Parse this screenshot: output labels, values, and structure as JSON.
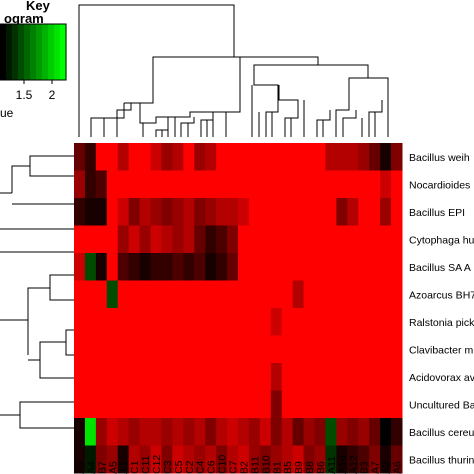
{
  "chart_data": {
    "type": "heatmap",
    "title": "",
    "color_key": {
      "title_line1": "Key",
      "title_line2": "ogram",
      "tick_labels": [
        "1.5",
        "2"
      ],
      "axis_label": "ue",
      "colors": [
        "#000000",
        "#00ff00"
      ]
    },
    "low_color": "#ff0000",
    "columns": [
      "A9",
      "A4",
      "B7",
      "A5",
      "A1",
      "C1",
      "C11",
      "C12",
      "C3",
      "C5",
      "C2",
      "C4",
      "C6",
      "C10",
      "C7",
      "B2",
      "B11",
      "B10",
      "B1",
      "B5",
      "B9",
      "B8",
      "B6",
      "A11",
      "A10",
      "A12",
      "B3",
      "A7",
      "A3",
      "A6"
    ],
    "rows": [
      "Bacillus weih",
      "Nocardioides",
      "Bacillus EPI",
      "Cytophaga hu",
      "Bacillus SA A",
      "Azoarcus BH7",
      "Ralstonia pick",
      "Clavibacter m",
      "Acidovorax av",
      "Uncultured Ba",
      "Bacillus cereu",
      "Bacillus thurin"
    ],
    "values": [
      [
        0.6,
        0.8,
        0,
        0,
        0.3,
        0,
        0,
        0.2,
        0.4,
        0.3,
        0,
        0.4,
        0.3,
        0,
        0,
        0,
        0,
        0,
        0,
        0,
        0,
        0,
        0,
        0.3,
        0.3,
        0.3,
        0.4,
        0.6,
        0.9,
        0.5
      ],
      [
        0.4,
        0.8,
        0.7,
        0,
        0,
        0,
        0,
        0,
        0,
        0,
        0,
        0,
        0,
        0,
        0,
        0,
        0,
        0,
        0,
        0,
        0,
        0,
        0,
        0,
        0,
        0,
        0,
        0,
        0.2,
        0
      ],
      [
        0.8,
        0.9,
        0.9,
        0,
        0.2,
        0.5,
        0.3,
        0.4,
        0.5,
        0.4,
        0.3,
        0.5,
        0.4,
        0.3,
        0.3,
        0.2,
        0,
        0,
        0,
        0,
        0,
        0,
        0,
        0,
        0.5,
        0.3,
        0,
        0,
        0.4,
        0
      ],
      [
        0,
        0,
        0,
        0,
        0.4,
        0.2,
        0.4,
        0.2,
        0.3,
        0.4,
        0.3,
        0.6,
        0.8,
        0.7,
        0.5,
        0,
        0,
        0,
        0,
        0,
        0,
        0,
        0,
        0,
        0,
        0,
        0,
        0,
        0,
        0
      ],
      [
        0.2,
        1.3,
        0.9,
        0,
        0.7,
        0.8,
        0.9,
        0.8,
        0.8,
        0.7,
        0.8,
        0.7,
        0.9,
        0.8,
        0.6,
        0,
        0,
        0,
        0,
        0,
        0,
        0,
        0,
        0,
        0,
        0,
        0,
        0,
        0,
        0
      ],
      [
        0,
        0,
        0,
        1.3,
        0,
        0,
        0,
        0,
        0,
        0,
        0,
        0,
        0,
        0,
        0,
        0,
        0,
        0,
        0,
        0,
        0.3,
        0,
        0,
        0,
        0,
        0,
        0,
        0,
        0,
        0
      ],
      [
        0,
        0,
        0,
        0,
        0,
        0,
        0,
        0,
        0,
        0,
        0,
        0,
        0,
        0,
        0,
        0,
        0,
        0,
        0.2,
        0,
        0,
        0,
        0,
        0,
        0,
        0,
        0,
        0,
        0,
        0
      ],
      [
        0,
        0,
        0,
        0,
        0,
        0,
        0,
        0,
        0,
        0,
        0,
        0,
        0,
        0,
        0,
        0,
        0,
        0,
        0,
        0,
        0,
        0,
        0,
        0,
        0,
        0,
        0,
        0,
        0,
        0
      ],
      [
        0,
        0,
        0,
        0,
        0,
        0,
        0,
        0,
        0,
        0,
        0,
        0,
        0,
        0,
        0,
        0,
        0,
        0,
        0.3,
        0,
        0,
        0,
        0,
        0,
        0,
        0,
        0,
        0,
        0,
        0
      ],
      [
        0,
        0,
        0,
        0,
        0,
        0,
        0,
        0,
        0,
        0,
        0,
        0,
        0,
        0,
        0,
        0,
        0,
        0,
        0.5,
        0,
        0,
        0,
        0,
        0,
        0,
        0,
        0,
        0,
        0,
        0
      ],
      [
        0.9,
        1.9,
        0.4,
        0.2,
        0.3,
        0.4,
        0.3,
        0.3,
        0.4,
        0.3,
        0.4,
        0.3,
        0.5,
        0.3,
        0.2,
        0.3,
        0.4,
        0.2,
        0.5,
        0.3,
        0.6,
        0.4,
        0.5,
        1.3,
        0.4,
        0.5,
        0.4,
        0.6,
        1.0,
        0.8
      ],
      [
        0.9,
        1.1,
        0.5,
        0.4,
        0.9,
        0.3,
        0.4,
        0.2,
        0.5,
        0.2,
        0.3,
        0.4,
        0.3,
        0.5,
        0.3,
        0.2,
        0.4,
        0.5,
        0.4,
        0.3,
        0.2,
        0.5,
        0.4,
        1.2,
        0.9,
        0.8,
        0.7,
        0.5,
        0.9,
        0.6
      ]
    ],
    "vmin": 0,
    "vmax": 2,
    "legend_position": "top-left"
  }
}
